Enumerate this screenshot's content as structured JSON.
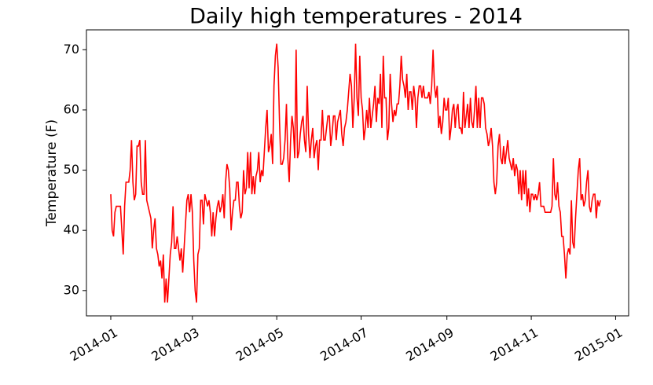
{
  "chart_data": {
    "type": "line",
    "title": "Daily high temperatures - 2014",
    "y_label": "Temperature (F)",
    "series": [
      {
        "name": "Daily high",
        "color": "#ff0000",
        "values": [
          46,
          40,
          39,
          43,
          44,
          44,
          44,
          44,
          40,
          36,
          44,
          48,
          48,
          48,
          50,
          55,
          48,
          45,
          46,
          54,
          54,
          55,
          48,
          46,
          46,
          55,
          45,
          44,
          43,
          42,
          37,
          40,
          42,
          37,
          36,
          34,
          35,
          32,
          36,
          28,
          32,
          28,
          32,
          36,
          38,
          44,
          37,
          37,
          39,
          37,
          35,
          37,
          33,
          37,
          41,
          45,
          46,
          43,
          46,
          43,
          35,
          30,
          28,
          36,
          37,
          45,
          45,
          41,
          46,
          45,
          44,
          45,
          43,
          39,
          43,
          39,
          42,
          44,
          45,
          43,
          44,
          46,
          42,
          48,
          51,
          50,
          47,
          40,
          43,
          45,
          45,
          48,
          48,
          44,
          42,
          43,
          50,
          46,
          47,
          53,
          47,
          53,
          46,
          49,
          46,
          49,
          50,
          53,
          48,
          50,
          49,
          53,
          57,
          60,
          53,
          54,
          56,
          51,
          64,
          69,
          71,
          67,
          58,
          51,
          51,
          52,
          55,
          61,
          52,
          48,
          55,
          59,
          57,
          52,
          70,
          52,
          53,
          56,
          58,
          59,
          55,
          53,
          64,
          56,
          52,
          55,
          57,
          52,
          54,
          55,
          50,
          55,
          55,
          60,
          55,
          55,
          57,
          59,
          59,
          54,
          56,
          59,
          59,
          55,
          58,
          59,
          60,
          56,
          54,
          57,
          58,
          60,
          63,
          66,
          64,
          57,
          62,
          71,
          62,
          59,
          69,
          62,
          60,
          55,
          57,
          60,
          57,
          62,
          57,
          59,
          61,
          64,
          58,
          62,
          61,
          66,
          57,
          69,
          62,
          62,
          55,
          57,
          66,
          61,
          58,
          60,
          59,
          61,
          61,
          64,
          69,
          65,
          64,
          62,
          66,
          60,
          63,
          63,
          60,
          64,
          62,
          57,
          62,
          64,
          64,
          62,
          64,
          62,
          62,
          62,
          63,
          61,
          64,
          70,
          64,
          62,
          64,
          57,
          59,
          56,
          58,
          62,
          60,
          60,
          62,
          55,
          57,
          60,
          61,
          57,
          60,
          61,
          57,
          57,
          56,
          63,
          57,
          59,
          61,
          57,
          62,
          58,
          57,
          60,
          64,
          57,
          62,
          57,
          62,
          62,
          61,
          57,
          56,
          54,
          55,
          57,
          54,
          48,
          46,
          48,
          54,
          56,
          52,
          51,
          54,
          51,
          53,
          55,
          52,
          51,
          50,
          52,
          49,
          51,
          50,
          46,
          50,
          45,
          50,
          46,
          50,
          44,
          47,
          43,
          46,
          46,
          45,
          46,
          45,
          46,
          48,
          44,
          44,
          44,
          43,
          43,
          43,
          43,
          43,
          44,
          52,
          46,
          45,
          48,
          44,
          43,
          39,
          39,
          36,
          32,
          36,
          37,
          36,
          45,
          38,
          37,
          42,
          46,
          50,
          52,
          45,
          46,
          44,
          45,
          48,
          50,
          44,
          43,
          45,
          46,
          46,
          42,
          45,
          44,
          45
        ]
      }
    ],
    "xlim": [
      -17.6,
      374.4
    ],
    "xticks": [
      {
        "value": 0,
        "label": "2014-01"
      },
      {
        "value": 59,
        "label": "2014-03"
      },
      {
        "value": 120,
        "label": "2014-05"
      },
      {
        "value": 181,
        "label": "2014-07"
      },
      {
        "value": 243,
        "label": "2014-09"
      },
      {
        "value": 304,
        "label": "2014-11"
      },
      {
        "value": 365,
        "label": "2015-01"
      }
    ],
    "ylim": [
      25.8,
      73.3
    ],
    "yticks": [
      30,
      40,
      50,
      60,
      70
    ],
    "grid": false
  }
}
